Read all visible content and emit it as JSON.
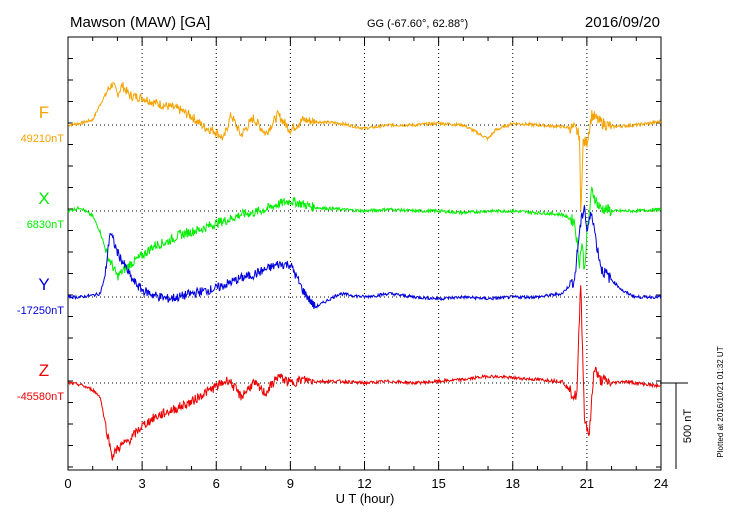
{
  "header": {
    "station": "Mawson (MAW)  [GA]",
    "coords": "GG (-67.60°,  62.88°)",
    "date": "2016/09/20"
  },
  "side_note": "Plotted at 2016/10/21 01:32 UT",
  "scale_bar_label": "500 nT",
  "chart_data": {
    "type": "line",
    "xlabel": "U T (hour)",
    "xlim": [
      0,
      24
    ],
    "x_ticks": [
      "0",
      "3",
      "6",
      "9",
      "12",
      "15",
      "18",
      "21",
      "24"
    ],
    "units_per_panel": 1000,
    "series": [
      {
        "name": "F",
        "baseline": "49210nT",
        "color": "#f5a300",
        "x": [
          0,
          0.5,
          1,
          1.3,
          1.6,
          1.8,
          2.0,
          2.2,
          2.5,
          3,
          3.5,
          4,
          4.5,
          5,
          5.5,
          6,
          6.3,
          6.6,
          7,
          7.5,
          8,
          8.5,
          9,
          9.5,
          10,
          11,
          12,
          13,
          14,
          15,
          16,
          16.5,
          17,
          17.3,
          18,
          19,
          20,
          20.5,
          20.7,
          20.75,
          20.85,
          21,
          21.2,
          21.5,
          22,
          23,
          24
        ],
        "y": [
          0,
          10,
          30,
          120,
          200,
          240,
          180,
          230,
          170,
          160,
          130,
          110,
          90,
          50,
          -10,
          -40,
          -80,
          60,
          -60,
          40,
          -50,
          60,
          -30,
          30,
          20,
          10,
          -20,
          0,
          0,
          10,
          0,
          -40,
          -80,
          -30,
          10,
          0,
          -10,
          -20,
          -60,
          -510,
          -100,
          -100,
          60,
          20,
          -10,
          0,
          20
        ]
      },
      {
        "name": "X",
        "baseline": "6830nT",
        "color": "#00ee00",
        "x": [
          0,
          0.5,
          1,
          1.3,
          1.6,
          2.0,
          2.5,
          3,
          3.5,
          4,
          4.5,
          5,
          5.5,
          6,
          6.5,
          7,
          7.5,
          8,
          8.5,
          9,
          9.5,
          10,
          11,
          12,
          13,
          14,
          15,
          16,
          17,
          18,
          19,
          20,
          20.5,
          20.7,
          20.8,
          20.9,
          21.0,
          21.2,
          21.5,
          22,
          23,
          24
        ],
        "y": [
          0,
          20,
          -30,
          -120,
          -260,
          -380,
          -310,
          -260,
          -200,
          -180,
          -140,
          -120,
          -100,
          -70,
          -50,
          -20,
          -10,
          10,
          40,
          60,
          40,
          20,
          10,
          0,
          10,
          0,
          0,
          -10,
          0,
          0,
          -10,
          -20,
          -60,
          -300,
          -180,
          -350,
          -140,
          120,
          20,
          0,
          0,
          10
        ]
      },
      {
        "name": "Y",
        "baseline": "-17250nT",
        "color": "#0000dd",
        "x": [
          0,
          0.5,
          1,
          1.3,
          1.5,
          1.7,
          2.0,
          2.3,
          2.6,
          3,
          3.5,
          4,
          4.5,
          5,
          6,
          6.5,
          7,
          7.5,
          8,
          8.5,
          9,
          9.5,
          10,
          11,
          12,
          13,
          14,
          15,
          16,
          17,
          18,
          19,
          20,
          20.5,
          20.7,
          20.9,
          21.0,
          21.2,
          21.4,
          21.6,
          22,
          22.5,
          23,
          24
        ],
        "y": [
          0,
          0,
          10,
          20,
          120,
          380,
          260,
          180,
          100,
          40,
          10,
          -10,
          0,
          20,
          50,
          80,
          110,
          130,
          160,
          190,
          190,
          40,
          -60,
          20,
          0,
          20,
          0,
          -10,
          0,
          -10,
          0,
          0,
          20,
          100,
          380,
          540,
          380,
          500,
          300,
          160,
          100,
          30,
          0,
          0
        ]
      },
      {
        "name": "Z",
        "baseline": "-45580nT",
        "color": "#ee0000",
        "x": [
          0,
          0.5,
          1,
          1.3,
          1.6,
          1.8,
          2.0,
          2.5,
          3,
          3.5,
          4,
          4.5,
          5,
          5.5,
          6,
          6.5,
          7,
          7.5,
          8,
          8.5,
          9,
          9.5,
          10,
          11,
          12,
          13,
          14,
          15,
          16,
          17,
          18,
          19,
          20,
          20.5,
          20.6,
          20.75,
          20.9,
          21.1,
          21.3,
          21.5,
          22,
          22.5,
          23,
          24
        ],
        "y": [
          0,
          -10,
          -40,
          -80,
          -300,
          -430,
          -380,
          -330,
          -250,
          -200,
          -170,
          -140,
          -110,
          -60,
          -20,
          20,
          -80,
          0,
          -60,
          40,
          0,
          20,
          10,
          10,
          0,
          10,
          0,
          10,
          20,
          40,
          30,
          20,
          10,
          -80,
          -60,
          600,
          -200,
          -300,
          100,
          20,
          0,
          10,
          0,
          -20
        ]
      }
    ]
  }
}
